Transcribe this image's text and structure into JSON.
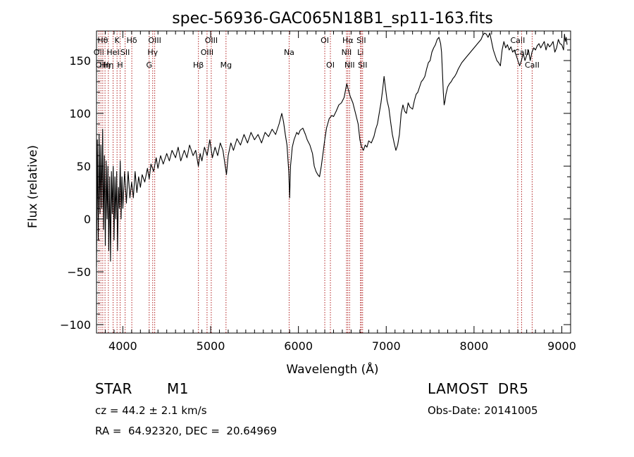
{
  "chart_data": {
    "type": "line",
    "title": "spec-56936-GAC065N18B1_sp11-163.fits",
    "xlabel": "Wavelength (Å)",
    "ylabel": "Flux (relative)",
    "xlim": [
      3700,
      9100
    ],
    "ylim": [
      -108,
      178
    ],
    "xticks": [
      4000,
      5000,
      6000,
      7000,
      8000,
      9000
    ],
    "yticks": [
      -100,
      -50,
      0,
      50,
      100,
      150
    ],
    "xtick_labels": [
      "4000",
      "5000",
      "6000",
      "7000",
      "8000",
      "9000"
    ],
    "ytick_labels": [
      "−100",
      "−50",
      "0",
      "50",
      "100",
      "150"
    ],
    "grid": false,
    "series": [
      {
        "points": [
          [
            3700,
            -45
          ],
          [
            3710,
            75
          ],
          [
            3720,
            -20
          ],
          [
            3730,
            80
          ],
          [
            3740,
            5
          ],
          [
            3750,
            70
          ],
          [
            3760,
            10
          ],
          [
            3770,
            85
          ],
          [
            3780,
            -10
          ],
          [
            3790,
            60
          ],
          [
            3800,
            -25
          ],
          [
            3810,
            55
          ],
          [
            3820,
            0
          ],
          [
            3830,
            50
          ],
          [
            3840,
            -30
          ],
          [
            3850,
            40
          ],
          [
            3860,
            -40
          ],
          [
            3870,
            45
          ],
          [
            3880,
            5
          ],
          [
            3890,
            50
          ],
          [
            3900,
            -20
          ],
          [
            3910,
            40
          ],
          [
            3920,
            0
          ],
          [
            3930,
            45
          ],
          [
            3940,
            -30
          ],
          [
            3950,
            30
          ],
          [
            3960,
            10
          ],
          [
            3970,
            55
          ],
          [
            3980,
            0
          ],
          [
            3990,
            40
          ],
          [
            4000,
            10
          ],
          [
            4020,
            45
          ],
          [
            4040,
            15
          ],
          [
            4060,
            45
          ],
          [
            4080,
            20
          ],
          [
            4100,
            35
          ],
          [
            4120,
            20
          ],
          [
            4140,
            45
          ],
          [
            4160,
            25
          ],
          [
            4180,
            40
          ],
          [
            4200,
            30
          ],
          [
            4220,
            42
          ],
          [
            4250,
            35
          ],
          [
            4280,
            48
          ],
          [
            4300,
            38
          ],
          [
            4320,
            52
          ],
          [
            4350,
            45
          ],
          [
            4380,
            58
          ],
          [
            4400,
            48
          ],
          [
            4430,
            60
          ],
          [
            4460,
            52
          ],
          [
            4500,
            62
          ],
          [
            4530,
            55
          ],
          [
            4560,
            65
          ],
          [
            4600,
            58
          ],
          [
            4630,
            68
          ],
          [
            4660,
            55
          ],
          [
            4700,
            65
          ],
          [
            4730,
            58
          ],
          [
            4760,
            70
          ],
          [
            4800,
            60
          ],
          [
            4830,
            65
          ],
          [
            4860,
            50
          ],
          [
            4880,
            62
          ],
          [
            4900,
            55
          ],
          [
            4930,
            68
          ],
          [
            4960,
            60
          ],
          [
            4990,
            75
          ],
          [
            5020,
            58
          ],
          [
            5050,
            68
          ],
          [
            5080,
            60
          ],
          [
            5110,
            72
          ],
          [
            5140,
            65
          ],
          [
            5170,
            48
          ],
          [
            5180,
            42
          ],
          [
            5200,
            60
          ],
          [
            5230,
            72
          ],
          [
            5260,
            65
          ],
          [
            5300,
            76
          ],
          [
            5340,
            70
          ],
          [
            5380,
            80
          ],
          [
            5420,
            72
          ],
          [
            5460,
            82
          ],
          [
            5500,
            75
          ],
          [
            5540,
            80
          ],
          [
            5580,
            72
          ],
          [
            5620,
            82
          ],
          [
            5660,
            78
          ],
          [
            5700,
            85
          ],
          [
            5740,
            80
          ],
          [
            5780,
            90
          ],
          [
            5810,
            100
          ],
          [
            5830,
            92
          ],
          [
            5850,
            80
          ],
          [
            5870,
            70
          ],
          [
            5890,
            45
          ],
          [
            5900,
            20
          ],
          [
            5910,
            50
          ],
          [
            5930,
            68
          ],
          [
            5950,
            75
          ],
          [
            5980,
            82
          ],
          [
            6000,
            80
          ],
          [
            6020,
            84
          ],
          [
            6050,
            86
          ],
          [
            6080,
            80
          ],
          [
            6100,
            75
          ],
          [
            6130,
            70
          ],
          [
            6160,
            62
          ],
          [
            6180,
            50
          ],
          [
            6200,
            45
          ],
          [
            6220,
            42
          ],
          [
            6240,
            40
          ],
          [
            6260,
            50
          ],
          [
            6280,
            62
          ],
          [
            6300,
            75
          ],
          [
            6320,
            86
          ],
          [
            6350,
            95
          ],
          [
            6380,
            98
          ],
          [
            6400,
            97
          ],
          [
            6430,
            102
          ],
          [
            6460,
            108
          ],
          [
            6490,
            110
          ],
          [
            6520,
            115
          ],
          [
            6550,
            128
          ],
          [
            6570,
            122
          ],
          [
            6590,
            116
          ],
          [
            6620,
            110
          ],
          [
            6650,
            100
          ],
          [
            6680,
            90
          ],
          [
            6700,
            75
          ],
          [
            6720,
            68
          ],
          [
            6740,
            65
          ],
          [
            6760,
            70
          ],
          [
            6780,
            68
          ],
          [
            6800,
            74
          ],
          [
            6830,
            72
          ],
          [
            6860,
            78
          ],
          [
            6880,
            85
          ],
          [
            6900,
            90
          ],
          [
            6920,
            100
          ],
          [
            6940,
            110
          ],
          [
            6960,
            123
          ],
          [
            6975,
            135
          ],
          [
            6990,
            125
          ],
          [
            7010,
            112
          ],
          [
            7030,
            105
          ],
          [
            7050,
            92
          ],
          [
            7070,
            80
          ],
          [
            7090,
            72
          ],
          [
            7110,
            65
          ],
          [
            7130,
            70
          ],
          [
            7150,
            80
          ],
          [
            7170,
            100
          ],
          [
            7190,
            108
          ],
          [
            7210,
            102
          ],
          [
            7230,
            100
          ],
          [
            7250,
            110
          ],
          [
            7270,
            106
          ],
          [
            7300,
            104
          ],
          [
            7320,
            112
          ],
          [
            7340,
            118
          ],
          [
            7360,
            120
          ],
          [
            7380,
            125
          ],
          [
            7400,
            130
          ],
          [
            7420,
            132
          ],
          [
            7440,
            135
          ],
          [
            7460,
            142
          ],
          [
            7480,
            148
          ],
          [
            7500,
            150
          ],
          [
            7520,
            158
          ],
          [
            7540,
            162
          ],
          [
            7560,
            165
          ],
          [
            7580,
            170
          ],
          [
            7600,
            172
          ],
          [
            7620,
            166
          ],
          [
            7630,
            158
          ],
          [
            7640,
            140
          ],
          [
            7650,
            120
          ],
          [
            7660,
            108
          ],
          [
            7670,
            112
          ],
          [
            7680,
            118
          ],
          [
            7700,
            125
          ],
          [
            7720,
            128
          ],
          [
            7740,
            130
          ],
          [
            7760,
            133
          ],
          [
            7780,
            135
          ],
          [
            7800,
            138
          ],
          [
            7820,
            142
          ],
          [
            7840,
            145
          ],
          [
            7860,
            148
          ],
          [
            7880,
            150
          ],
          [
            7900,
            152
          ],
          [
            7920,
            154
          ],
          [
            7940,
            156
          ],
          [
            7960,
            158
          ],
          [
            7980,
            160
          ],
          [
            8000,
            162
          ],
          [
            8020,
            164
          ],
          [
            8040,
            166
          ],
          [
            8060,
            168
          ],
          [
            8080,
            170
          ],
          [
            8100,
            174
          ],
          [
            8120,
            176
          ],
          [
            8140,
            175
          ],
          [
            8160,
            172
          ],
          [
            8180,
            176
          ],
          [
            8200,
            168
          ],
          [
            8220,
            160
          ],
          [
            8240,
            155
          ],
          [
            8260,
            150
          ],
          [
            8280,
            148
          ],
          [
            8300,
            145
          ],
          [
            8320,
            160
          ],
          [
            8340,
            168
          ],
          [
            8360,
            162
          ],
          [
            8380,
            165
          ],
          [
            8400,
            160
          ],
          [
            8420,
            163
          ],
          [
            8440,
            158
          ],
          [
            8460,
            160
          ],
          [
            8480,
            155
          ],
          [
            8500,
            150
          ],
          [
            8520,
            145
          ],
          [
            8540,
            150
          ],
          [
            8560,
            157
          ],
          [
            8580,
            150
          ],
          [
            8600,
            155
          ],
          [
            8620,
            160
          ],
          [
            8640,
            150
          ],
          [
            8660,
            158
          ],
          [
            8680,
            162
          ],
          [
            8700,
            160
          ],
          [
            8720,
            164
          ],
          [
            8740,
            166
          ],
          [
            8760,
            162
          ],
          [
            8780,
            165
          ],
          [
            8800,
            168
          ],
          [
            8820,
            160
          ],
          [
            8840,
            166
          ],
          [
            8860,
            163
          ],
          [
            8880,
            165
          ],
          [
            8900,
            168
          ],
          [
            8920,
            158
          ],
          [
            8940,
            162
          ],
          [
            8960,
            170
          ],
          [
            8980,
            166
          ],
          [
            9000,
            165
          ],
          [
            9020,
            160
          ],
          [
            9030,
            175
          ],
          [
            9040,
            168
          ],
          [
            9050,
            172
          ],
          [
            9060,
            165
          ]
        ]
      }
    ],
    "line_markers": [
      {
        "wave": 3727,
        "label": "OII",
        "row": 2
      },
      {
        "wave": 3750,
        "label": "OII",
        "row": 3
      },
      {
        "wave": 3771,
        "label": "Hθ",
        "row": 1
      },
      {
        "wave": 3797,
        "label": "Hη",
        "row": 3
      },
      {
        "wave": 3835,
        "label": "Hη",
        "row": 3
      },
      {
        "wave": 3889,
        "label": "HeI",
        "row": 2
      },
      {
        "wave": 3934,
        "label": "K",
        "row": 1
      },
      {
        "wave": 3969,
        "label": "H",
        "row": 3
      },
      {
        "wave": 4026,
        "label": "SII",
        "row": 2
      },
      {
        "wave": 4102,
        "label": "Hδ",
        "row": 1
      },
      {
        "wave": 4300,
        "label": "G",
        "row": 3
      },
      {
        "wave": 4340,
        "label": "Hγ",
        "row": 2
      },
      {
        "wave": 4363,
        "label": "OIII",
        "row": 1
      },
      {
        "wave": 4861,
        "label": "Hβ",
        "row": 3
      },
      {
        "wave": 4959,
        "label": "OIII",
        "row": 2
      },
      {
        "wave": 5007,
        "label": "OIII",
        "row": 1
      },
      {
        "wave": 5175,
        "label": "Mg",
        "row": 3
      },
      {
        "wave": 5894,
        "label": "Na",
        "row": 2
      },
      {
        "wave": 6300,
        "label": "OI",
        "row": 1
      },
      {
        "wave": 6364,
        "label": "OI",
        "row": 3
      },
      {
        "wave": 6548,
        "label": "NII",
        "row": 2
      },
      {
        "wave": 6563,
        "label": "Hα",
        "row": 1
      },
      {
        "wave": 6583,
        "label": "NII",
        "row": 3
      },
      {
        "wave": 6707,
        "label": "Li",
        "row": 2
      },
      {
        "wave": 6716,
        "label": "SII",
        "row": 1
      },
      {
        "wave": 6731,
        "label": "SII",
        "row": 3
      },
      {
        "wave": 8498,
        "label": "CaII",
        "row": 1
      },
      {
        "wave": 8542,
        "label": "CaII",
        "row": 2
      },
      {
        "wave": 8662,
        "label": "CaII",
        "row": 3
      }
    ]
  },
  "info": {
    "class_label": "STAR",
    "subclass_label": "M1",
    "velocity": "cz = 44.2 ± 2.1 km/s",
    "coordinates": "RA =  64.92320, DEC =  20.64969",
    "survey": "LAMOST  DR5",
    "obs_date": "Obs-Date: 20141005"
  }
}
